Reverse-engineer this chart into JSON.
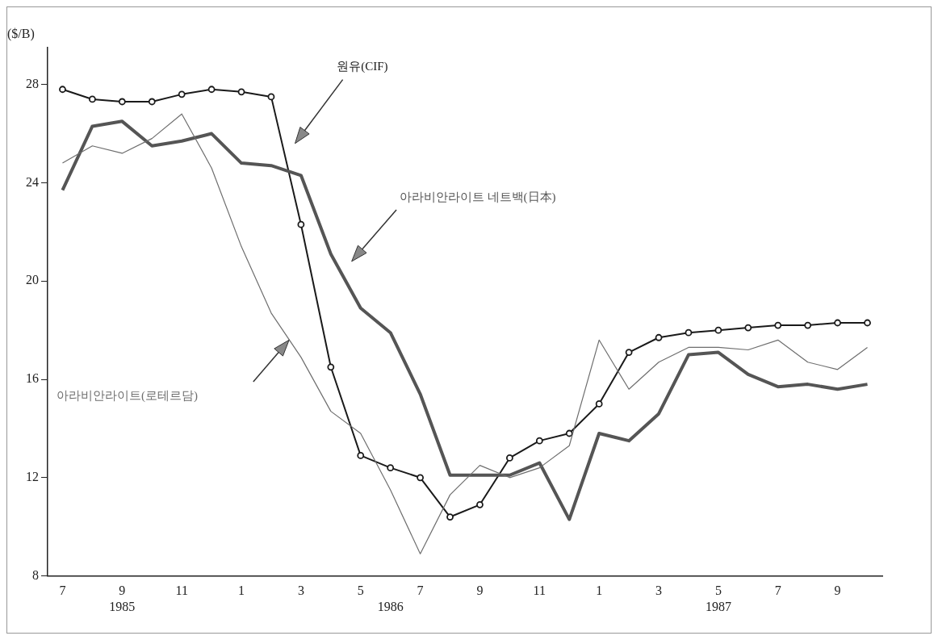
{
  "chart_data": {
    "type": "line",
    "ylabel": "($/B)",
    "categories": [
      "7",
      null,
      "9\n1985",
      null,
      "11",
      null,
      "1",
      null,
      "3",
      null,
      "5",
      "\n1986",
      "7",
      null,
      "9",
      null,
      "11",
      null,
      "1",
      null,
      "3",
      null,
      "5\n1987",
      null,
      "7",
      null,
      "9",
      null
    ],
    "series": [
      {
        "name": "원유(CIF)",
        "color": "#1a1a1a",
        "marker": "circle",
        "values": [
          27.8,
          27.4,
          27.3,
          27.3,
          27.6,
          27.8,
          27.7,
          27.5,
          22.3,
          16.5,
          12.9,
          12.4,
          12.0,
          10.4,
          10.9,
          12.8,
          13.5,
          13.8,
          15.0,
          17.1,
          17.7,
          17.9,
          18.0,
          18.1,
          18.2,
          18.2,
          18.3,
          18.3
        ]
      },
      {
        "name": "아라비안라이트 네트백(日本)",
        "color": "#555555",
        "marker": "none",
        "values": [
          23.7,
          26.3,
          26.5,
          25.5,
          25.7,
          26.0,
          24.8,
          24.7,
          24.3,
          21.1,
          18.9,
          17.9,
          15.4,
          12.1,
          12.1,
          12.1,
          12.6,
          10.3,
          13.8,
          13.5,
          14.6,
          17.0,
          17.1,
          16.2,
          15.7,
          15.8,
          15.6,
          15.8
        ]
      },
      {
        "name": "아라비안라이트(로테르담)",
        "color": "#6e6e6e",
        "marker": "none",
        "values": [
          24.8,
          25.5,
          25.2,
          25.8,
          26.8,
          24.6,
          21.4,
          18.7,
          16.9,
          14.7,
          13.8,
          11.5,
          8.9,
          11.3,
          12.5,
          12.0,
          12.4,
          13.3,
          17.6,
          15.6,
          16.7,
          17.3,
          17.3,
          17.2,
          17.6,
          16.7,
          16.4,
          17.3
        ]
      }
    ],
    "ylim": [
      8,
      29.5
    ],
    "yticks": [
      8,
      12,
      16,
      20,
      24,
      28
    ],
    "grid": false,
    "legend": false
  }
}
